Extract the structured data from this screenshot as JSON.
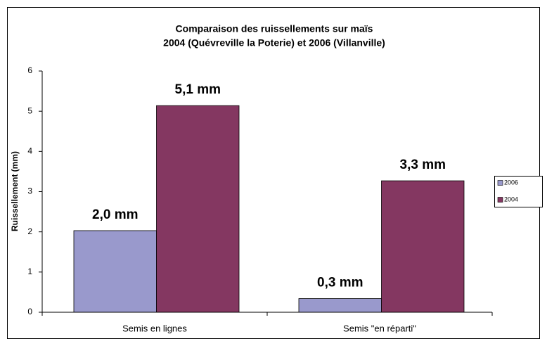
{
  "chart_data": {
    "type": "bar",
    "title": [
      "Comparaison des ruissellements sur maïs",
      "2004 (Quévreville la Poterie) et 2006 (Villanville)"
    ],
    "y_label": "Ruissellement (mm)",
    "categories": [
      "Semis en lignes",
      "Semis \"en réparti\""
    ],
    "series": [
      {
        "name": "2006",
        "color": "#9999cc",
        "values": [
          2.03,
          0.34
        ],
        "value_labels": [
          "2,0 mm",
          "0,3 mm"
        ]
      },
      {
        "name": "2004",
        "color": "#843761",
        "values": [
          5.14,
          3.27
        ],
        "value_labels": [
          "5,1 mm",
          "3,3 mm"
        ]
      }
    ],
    "value_label_color": "#c0312f",
    "ylim": [
      0,
      6
    ],
    "yticks": [
      0,
      1,
      2,
      3,
      4,
      5,
      6
    ],
    "grid": false,
    "legend": "right"
  }
}
